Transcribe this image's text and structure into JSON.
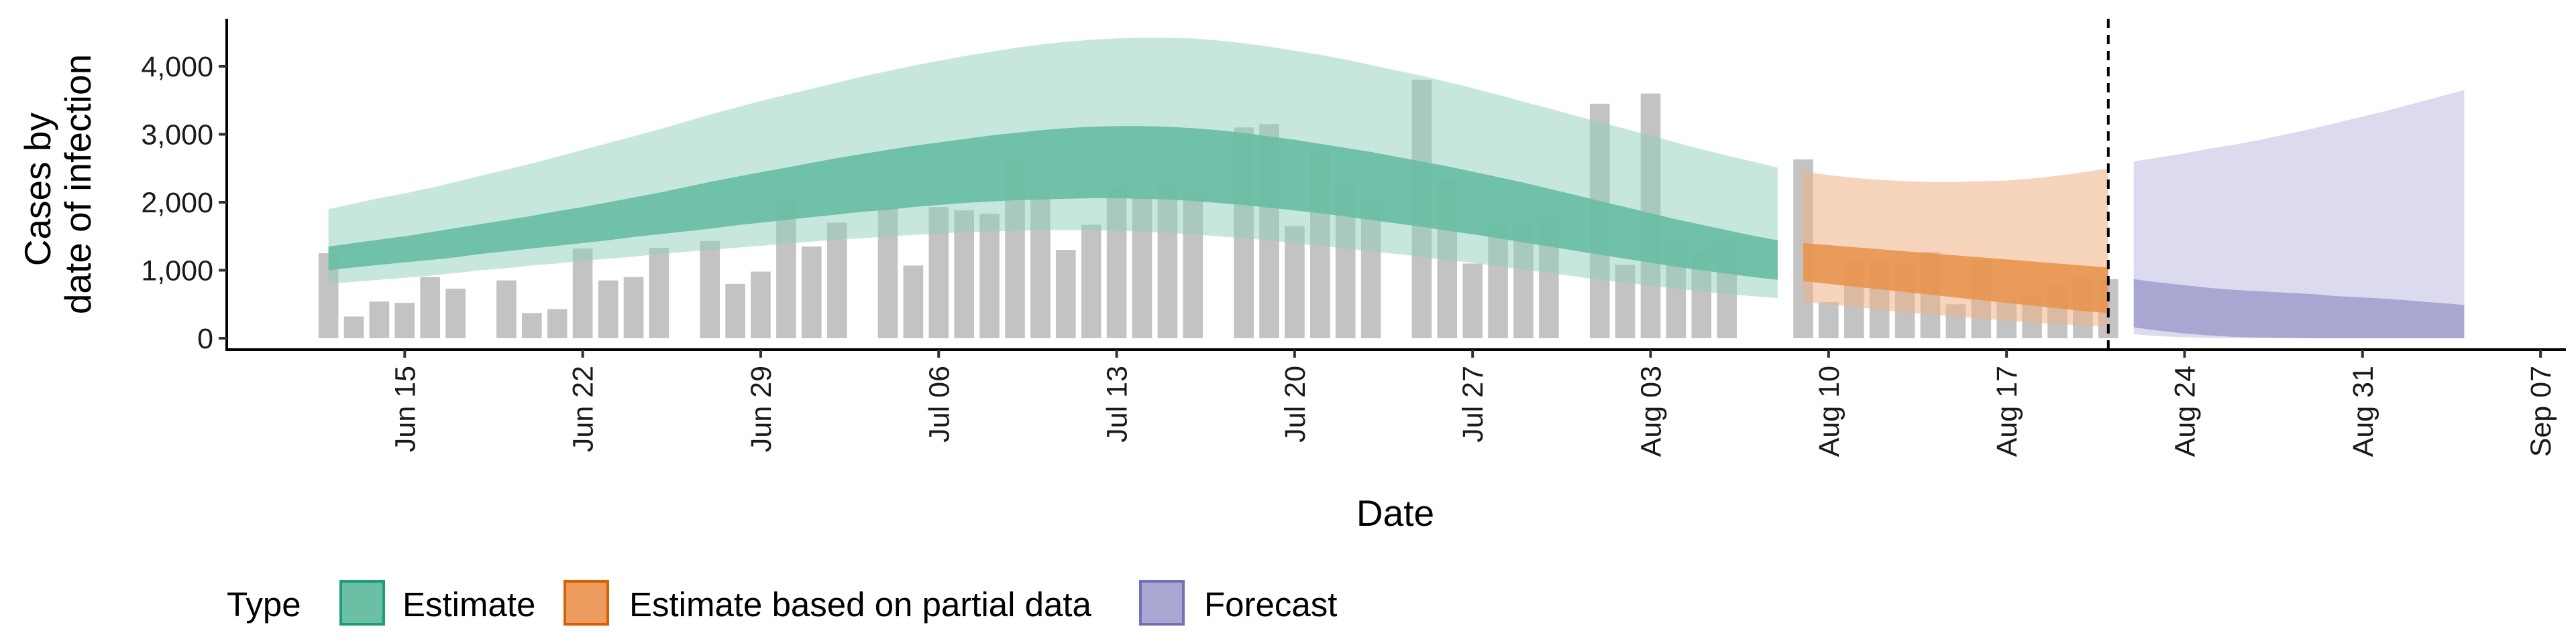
{
  "chart_data": {
    "type": "area",
    "title": "",
    "xlabel": "Date",
    "ylabel_lines": [
      "Cases by",
      "date of infection"
    ],
    "ylim": [
      0,
      4750
    ],
    "xlim": [
      "2020-06-08",
      "2020-09-08"
    ],
    "y_ticks": [
      {
        "value": 0,
        "label": "0"
      },
      {
        "value": 1000,
        "label": "1,000"
      },
      {
        "value": 2000,
        "label": "2,000"
      },
      {
        "value": 3000,
        "label": "3,000"
      },
      {
        "value": 4000,
        "label": "4,000"
      }
    ],
    "x_ticks": [
      {
        "date": "2020-06-15",
        "label": "Jun 15"
      },
      {
        "date": "2020-06-22",
        "label": "Jun 22"
      },
      {
        "date": "2020-06-29",
        "label": "Jun 29"
      },
      {
        "date": "2020-07-06",
        "label": "Jul 06"
      },
      {
        "date": "2020-07-13",
        "label": "Jul 13"
      },
      {
        "date": "2020-07-20",
        "label": "Jul 20"
      },
      {
        "date": "2020-07-27",
        "label": "Jul 27"
      },
      {
        "date": "2020-08-03",
        "label": "Aug 03"
      },
      {
        "date": "2020-08-10",
        "label": "Aug 10"
      },
      {
        "date": "2020-08-17",
        "label": "Aug 17"
      },
      {
        "date": "2020-08-24",
        "label": "Aug 24"
      },
      {
        "date": "2020-08-31",
        "label": "Aug 31"
      },
      {
        "date": "2020-09-07",
        "label": "Sep 07"
      }
    ],
    "vline_date": "2020-08-21",
    "grid": false,
    "legend": {
      "position": "bottom",
      "title": "Type",
      "entries": [
        {
          "label": "Estimate",
          "fill": "#6bbfa5",
          "stroke": "#1b9e77"
        },
        {
          "label": "Estimate based on partial data",
          "fill": "#eb9c5e",
          "stroke": "#d95f02"
        },
        {
          "label": "Forecast",
          "fill": "#a9a6d2",
          "stroke": "#7570b3"
        }
      ]
    },
    "colors": {
      "bar": "#bdbdbd",
      "estimate_inner": "#6bbfa5",
      "estimate_outer": "#c6e8dc",
      "partial_inner": "#e8954f",
      "partial_outer": "#f6d3b6",
      "forecast_inner": "#a7a3d0",
      "forecast_outer": "#dcdbee"
    },
    "bars": {
      "start_date": "2020-06-12",
      "values": [
        1250,
        320,
        540,
        520,
        900,
        730,
        null,
        850,
        370,
        430,
        1320,
        850,
        900,
        1330,
        null,
        1430,
        800,
        980,
        2050,
        1350,
        1700,
        null,
        1920,
        1070,
        1930,
        1880,
        1830,
        2620,
        2130,
        1300,
        1670,
        2200,
        2070,
        2270,
        2150,
        null,
        3100,
        3150,
        1650,
        2760,
        2270,
        2050,
        null,
        3800,
        2330,
        1100,
        1700,
        1700,
        1770,
        null,
        3450,
        1080,
        3600,
        1450,
        1280,
        1460,
        null,
        null,
        2630,
        530,
        1130,
        1150,
        1100,
        1270,
        500,
        1150,
        550,
        600,
        780,
        900,
        870
      ]
    },
    "estimate": {
      "start_date": "2020-06-12",
      "end_date": "2020-08-08",
      "inner_lower": [
        1000,
        1040,
        1080,
        1115,
        1150,
        1190,
        1240,
        1280,
        1320,
        1360,
        1400,
        1440,
        1490,
        1530,
        1570,
        1610,
        1660,
        1700,
        1740,
        1780,
        1820,
        1860,
        1890,
        1930,
        1960,
        1990,
        2010,
        2030,
        2040,
        2050,
        2060,
        2060,
        2050,
        2040,
        2020,
        1990,
        1960,
        1920,
        1880,
        1840,
        1790,
        1740,
        1690,
        1640,
        1580,
        1530,
        1470,
        1410,
        1350,
        1290,
        1230,
        1170,
        1110,
        1050,
        1000,
        950,
        900,
        860
      ],
      "inner_upper": [
        1350,
        1400,
        1450,
        1500,
        1560,
        1620,
        1680,
        1740,
        1800,
        1870,
        1930,
        2000,
        2070,
        2140,
        2220,
        2300,
        2370,
        2440,
        2510,
        2580,
        2650,
        2710,
        2770,
        2830,
        2880,
        2930,
        2980,
        3020,
        3060,
        3090,
        3110,
        3120,
        3120,
        3110,
        3090,
        3060,
        3020,
        2970,
        2920,
        2860,
        2800,
        2740,
        2670,
        2600,
        2530,
        2450,
        2370,
        2290,
        2200,
        2110,
        2020,
        1930,
        1840,
        1750,
        1670,
        1590,
        1510,
        1440
      ],
      "outer_lower": [
        800,
        830,
        860,
        890,
        920,
        960,
        1000,
        1030,
        1070,
        1100,
        1140,
        1170,
        1200,
        1240,
        1270,
        1300,
        1330,
        1360,
        1390,
        1420,
        1450,
        1470,
        1500,
        1520,
        1540,
        1560,
        1570,
        1580,
        1590,
        1590,
        1590,
        1580,
        1570,
        1550,
        1530,
        1500,
        1470,
        1440,
        1400,
        1360,
        1320,
        1280,
        1240,
        1200,
        1150,
        1110,
        1060,
        1010,
        960,
        910,
        860,
        820,
        770,
        730,
        690,
        650,
        620,
        590
      ],
      "outer_upper": [
        1900,
        1980,
        2060,
        2130,
        2210,
        2300,
        2390,
        2480,
        2570,
        2670,
        2770,
        2870,
        2970,
        3070,
        3180,
        3290,
        3390,
        3490,
        3580,
        3670,
        3760,
        3850,
        3930,
        4010,
        4080,
        4150,
        4210,
        4270,
        4320,
        4360,
        4390,
        4410,
        4420,
        4420,
        4410,
        4380,
        4340,
        4290,
        4230,
        4170,
        4100,
        4020,
        3940,
        3860,
        3770,
        3680,
        3580,
        3480,
        3380,
        3280,
        3180,
        3080,
        2980,
        2880,
        2780,
        2690,
        2600,
        2510
      ]
    },
    "partial": {
      "start_date": "2020-08-09",
      "end_date": "2020-08-21",
      "inner_lower": [
        840,
        800,
        760,
        720,
        680,
        640,
        600,
        560,
        520,
        480,
        440,
        400,
        370
      ],
      "inner_upper": [
        1400,
        1370,
        1340,
        1310,
        1280,
        1250,
        1220,
        1190,
        1160,
        1130,
        1100,
        1070,
        1040
      ],
      "outer_lower": [
        540,
        500,
        460,
        420,
        380,
        350,
        320,
        290,
        260,
        230,
        210,
        190,
        170
      ],
      "outer_upper": [
        2450,
        2400,
        2360,
        2330,
        2310,
        2300,
        2300,
        2310,
        2320,
        2350,
        2390,
        2440,
        2500
      ]
    },
    "forecast": {
      "start_date": "2020-08-22",
      "end_date": "2020-09-04",
      "inner_lower": [
        160,
        110,
        70,
        40,
        20,
        10,
        5,
        0,
        0,
        0,
        0,
        0,
        0,
        0
      ],
      "inner_upper": [
        870,
        820,
        780,
        740,
        710,
        690,
        670,
        650,
        620,
        600,
        580,
        550,
        520,
        490
      ],
      "outer_lower": [
        60,
        30,
        15,
        5,
        0,
        0,
        0,
        0,
        0,
        0,
        0,
        0,
        0,
        0
      ],
      "outer_upper": [
        2600,
        2660,
        2720,
        2790,
        2850,
        2920,
        3000,
        3080,
        3170,
        3260,
        3350,
        3450,
        3550,
        3650
      ]
    }
  }
}
